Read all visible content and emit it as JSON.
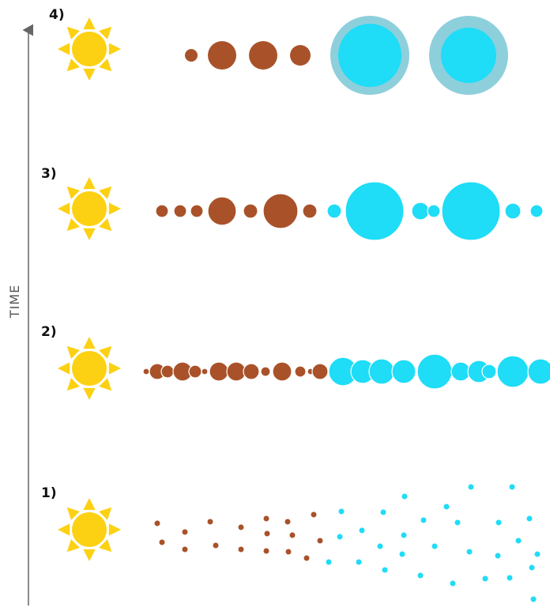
{
  "axis": {
    "label": "TIME"
  },
  "stages": [
    {
      "label": "4)"
    },
    {
      "label": "3)"
    },
    {
      "label": "2)"
    },
    {
      "label": "1)"
    }
  ]
}
